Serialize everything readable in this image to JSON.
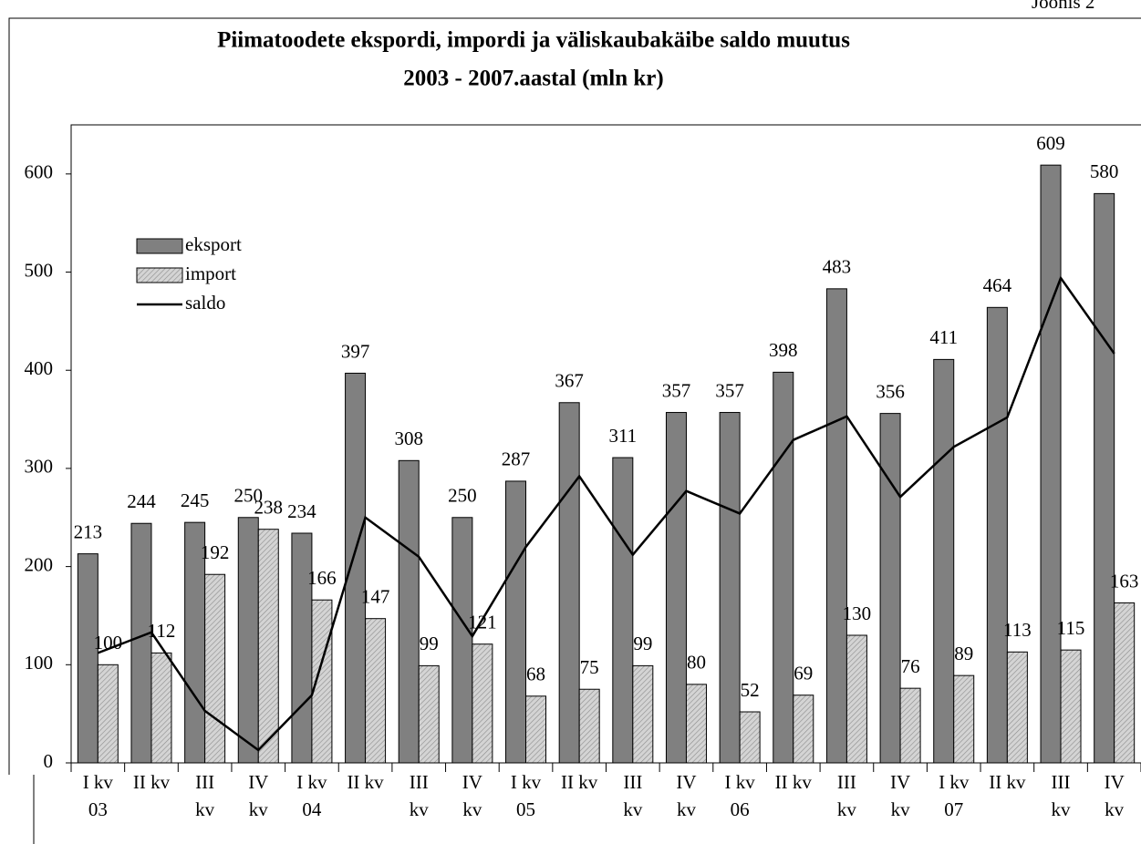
{
  "chart_data": {
    "type": "bar",
    "figure_label": "Joonis 2",
    "title": [
      "Piimatoodete ekspordi, impordi ja väliskaubakäibe saldo muutus",
      "2003 - 2007.aastal (mln kr)"
    ],
    "categories": [
      [
        "I kv",
        "03"
      ],
      [
        "II kv"
      ],
      [
        "III",
        "kv"
      ],
      [
        "IV",
        "kv"
      ],
      [
        "I kv",
        "04"
      ],
      [
        "II kv"
      ],
      [
        "III",
        "kv"
      ],
      [
        "IV",
        "kv"
      ],
      [
        "I kv",
        "05"
      ],
      [
        "II kv"
      ],
      [
        "III",
        "kv"
      ],
      [
        "IV",
        "kv"
      ],
      [
        "I kv",
        "06"
      ],
      [
        "II kv"
      ],
      [
        "III",
        "kv"
      ],
      [
        "IV",
        "kv"
      ],
      [
        "I kv",
        "07"
      ],
      [
        "II kv"
      ],
      [
        "III",
        "kv"
      ],
      [
        "IV",
        "kv"
      ]
    ],
    "series": [
      {
        "name": "eksport",
        "type": "bar",
        "color": "#808080",
        "values": [
          213,
          244,
          245,
          250,
          234,
          397,
          308,
          250,
          287,
          367,
          311,
          357,
          357,
          398,
          483,
          356,
          411,
          464,
          609,
          580
        ]
      },
      {
        "name": "import",
        "type": "bar",
        "color": "#d4d4d4",
        "hatch": true,
        "values": [
          100,
          112,
          192,
          238,
          166,
          147,
          99,
          121,
          68,
          75,
          99,
          80,
          52,
          69,
          130,
          76,
          89,
          113,
          115,
          163
        ]
      },
      {
        "name": "saldo",
        "type": "line",
        "color": "#000000",
        "values": [
          112,
          133,
          53,
          13,
          69,
          250,
          210,
          129,
          220,
          292,
          212,
          277,
          254,
          329,
          353,
          271,
          322,
          352,
          494,
          417
        ]
      }
    ],
    "value_labels_for": [
      "eksport",
      "import"
    ],
    "ylim": [
      0,
      650
    ],
    "yticks": [
      0,
      100,
      200,
      300,
      400,
      500,
      600
    ],
    "legend": "upper left"
  }
}
